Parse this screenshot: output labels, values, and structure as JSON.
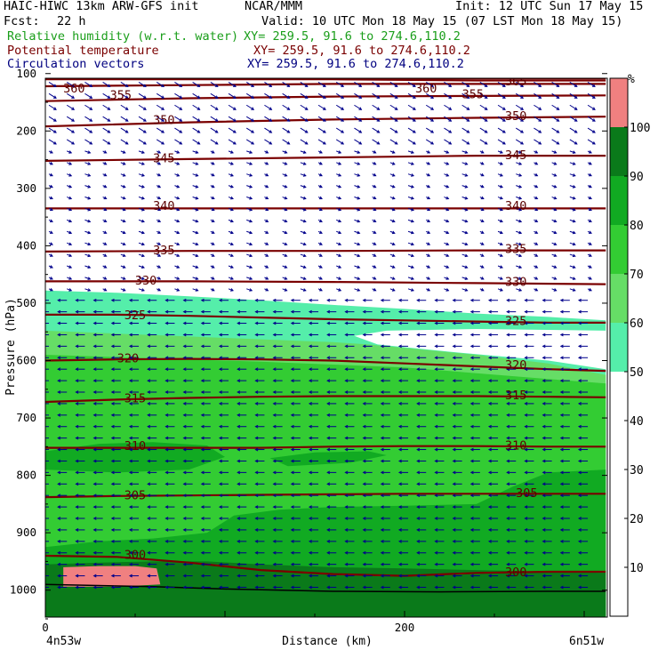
{
  "header": {
    "model": "HAIC-HIWC 13km ARW-GFS init",
    "org": "NCAR/MMM",
    "init": "Init: 12 UTC Sun 17 May 15",
    "fcst_label": "Fcst:",
    "fcst_value": "22 h",
    "valid": "Valid: 10 UTC Mon 18 May 15 (07 LST Mon 18 May 15)",
    "fields": [
      {
        "name": "Relative humidity (w.r.t. water)",
        "xy": "XY= 259.5, 91.6 to 274.6,110.2",
        "color": "#1a9e1a"
      },
      {
        "name": "Potential temperature",
        "xy": "XY= 259.5, 91.6 to 274.6,110.2",
        "color": "#7a0000"
      },
      {
        "name": "Circulation vectors",
        "xy": "XY= 259.5, 91.6 to 274.6,110.2",
        "color": "#000080"
      }
    ]
  },
  "chart_data": {
    "type": "heatmap",
    "xlabel": "Distance (km)",
    "ylabel": "Pressure (hPa)",
    "xlim": [
      0,
      312
    ],
    "ylim": [
      1050,
      70
    ],
    "x_ticks": [
      0,
      200
    ],
    "y_ticks": [
      100,
      200,
      300,
      400,
      500,
      600,
      700,
      800,
      900,
      1000
    ],
    "x_end_labels": {
      "left": "4n53w",
      "right": "6n51w"
    },
    "colorbar": {
      "unit": "%",
      "ticks": [
        10,
        20,
        30,
        40,
        50,
        60,
        70,
        80,
        90,
        100
      ],
      "bands": [
        {
          "from": 50,
          "to": 60,
          "color": "#55eeaa"
        },
        {
          "from": 60,
          "to": 70,
          "color": "#66dd66"
        },
        {
          "from": 70,
          "to": 80,
          "color": "#33cc33"
        },
        {
          "from": 80,
          "to": 90,
          "color": "#11aa22"
        },
        {
          "from": 90,
          "to": 100,
          "color": "#0a7a1a"
        },
        {
          "from": 100,
          "to": 110,
          "color": "#f08080"
        }
      ]
    },
    "rh_regions": [
      {
        "level": 50,
        "color": "#55eeaa",
        "top": [
          [
            0,
            478
          ],
          [
            40,
            482
          ],
          [
            80,
            488
          ],
          [
            120,
            495
          ],
          [
            160,
            503
          ],
          [
            200,
            510
          ],
          [
            240,
            518
          ],
          [
            280,
            524
          ],
          [
            312,
            530
          ]
        ]
      },
      {
        "level": 60,
        "color": "#66dd66",
        "top": [
          [
            0,
            548
          ],
          [
            40,
            553
          ],
          [
            80,
            558
          ],
          [
            120,
            563
          ],
          [
            160,
            568
          ],
          [
            180,
            572
          ],
          [
            200,
            578
          ],
          [
            240,
            590
          ],
          [
            280,
            605
          ],
          [
            312,
            625
          ]
        ]
      },
      {
        "level": 70,
        "color": "#33cc33",
        "top": [
          [
            0,
            590
          ],
          [
            40,
            594
          ],
          [
            80,
            598
          ],
          [
            120,
            602
          ],
          [
            160,
            607
          ],
          [
            200,
            612
          ],
          [
            240,
            622
          ],
          [
            280,
            632
          ],
          [
            312,
            640
          ]
        ]
      },
      {
        "level": 80,
        "color": "#11aa22",
        "top": [
          [
            0,
            925
          ],
          [
            30,
            915
          ],
          [
            60,
            910
          ],
          [
            90,
            900
          ],
          [
            105,
            870
          ],
          [
            130,
            860
          ],
          [
            160,
            855
          ],
          [
            200,
            853
          ],
          [
            240,
            850
          ],
          [
            260,
            820
          ],
          [
            280,
            795
          ],
          [
            312,
            790
          ]
        ]
      },
      {
        "level": 90,
        "color": "#0a7a1a",
        "top": [
          [
            0,
            955
          ],
          [
            30,
            952
          ],
          [
            60,
            950
          ],
          [
            90,
            950
          ],
          [
            120,
            955
          ],
          [
            160,
            960
          ],
          [
            200,
            962
          ],
          [
            240,
            965
          ],
          [
            280,
            968
          ],
          [
            312,
            970
          ]
        ]
      },
      {
        "level": 100,
        "color": "#7a0000",
        "top": [
          [
            0,
            70
          ],
          [
            312,
            70
          ]
        ],
        "bottom": [
          [
            0,
            110
          ],
          [
            312,
            110
          ]
        ]
      }
    ],
    "saturated_patch": {
      "color": "#f08080",
      "points": [
        [
          10,
          960
        ],
        [
          30,
          958
        ],
        [
          50,
          958
        ],
        [
          62,
          962
        ],
        [
          64,
          990
        ],
        [
          40,
          994
        ],
        [
          10,
          994
        ]
      ]
    },
    "theta_isentropes": [
      {
        "value": 300,
        "points": [
          [
            0,
            940
          ],
          [
            40,
            942
          ],
          [
            80,
            952
          ],
          [
            120,
            965
          ],
          [
            160,
            972
          ],
          [
            200,
            975
          ],
          [
            240,
            970
          ],
          [
            280,
            968
          ],
          [
            312,
            968
          ]
        ]
      },
      {
        "value": 305,
        "points": [
          [
            0,
            838
          ],
          [
            40,
            836
          ],
          [
            80,
            835
          ],
          [
            120,
            834
          ],
          [
            160,
            833
          ],
          [
            200,
            832
          ],
          [
            240,
            832
          ],
          [
            280,
            832
          ],
          [
            312,
            832
          ]
        ]
      },
      {
        "value": 310,
        "points": [
          [
            0,
            752
          ],
          [
            40,
            752
          ],
          [
            80,
            752
          ],
          [
            120,
            752
          ],
          [
            160,
            750
          ],
          [
            200,
            749
          ],
          [
            240,
            749
          ],
          [
            280,
            750
          ],
          [
            312,
            750
          ]
        ]
      },
      {
        "value": 315,
        "points": [
          [
            0,
            672
          ],
          [
            40,
            668
          ],
          [
            80,
            665
          ],
          [
            120,
            663
          ],
          [
            160,
            662
          ],
          [
            200,
            662
          ],
          [
            240,
            662
          ],
          [
            280,
            663
          ],
          [
            312,
            664
          ]
        ]
      },
      {
        "value": 320,
        "points": [
          [
            0,
            600
          ],
          [
            40,
            598
          ],
          [
            80,
            597
          ],
          [
            120,
            598
          ],
          [
            160,
            600
          ],
          [
            200,
            605
          ],
          [
            240,
            610
          ],
          [
            280,
            615
          ],
          [
            312,
            618
          ]
        ]
      },
      {
        "value": 325,
        "points": [
          [
            0,
            520
          ],
          [
            40,
            520
          ],
          [
            80,
            522
          ],
          [
            120,
            525
          ],
          [
            160,
            528
          ],
          [
            200,
            530
          ],
          [
            240,
            532
          ],
          [
            280,
            534
          ],
          [
            312,
            534
          ]
        ]
      },
      {
        "value": 330,
        "points": [
          [
            0,
            462
          ],
          [
            80,
            462
          ],
          [
            160,
            463
          ],
          [
            240,
            465
          ],
          [
            312,
            467
          ]
        ]
      },
      {
        "value": 335,
        "points": [
          [
            0,
            410
          ],
          [
            80,
            409
          ],
          [
            160,
            409
          ],
          [
            240,
            408
          ],
          [
            312,
            408
          ]
        ]
      },
      {
        "value": 340,
        "points": [
          [
            0,
            335
          ],
          [
            80,
            335
          ],
          [
            160,
            335
          ],
          [
            240,
            335
          ],
          [
            312,
            335
          ]
        ]
      },
      {
        "value": 345,
        "points": [
          [
            0,
            252
          ],
          [
            80,
            249
          ],
          [
            160,
            246
          ],
          [
            240,
            243
          ],
          [
            312,
            243
          ]
        ]
      },
      {
        "value": 350,
        "points": [
          [
            0,
            192
          ],
          [
            80,
            185
          ],
          [
            160,
            180
          ],
          [
            240,
            177
          ],
          [
            312,
            175
          ]
        ]
      },
      {
        "value": 355,
        "points": [
          [
            0,
            148
          ],
          [
            80,
            143
          ],
          [
            160,
            140
          ],
          [
            240,
            139
          ],
          [
            312,
            138
          ]
        ]
      },
      {
        "value": 360,
        "points": [
          [
            0,
            122
          ],
          [
            80,
            120
          ],
          [
            160,
            118
          ],
          [
            240,
            118
          ],
          [
            312,
            118
          ]
        ]
      },
      {
        "value": 365,
        "points": [
          [
            0,
            110
          ],
          [
            80,
            110
          ],
          [
            160,
            110
          ],
          [
            240,
            112
          ],
          [
            312,
            112
          ]
        ]
      }
    ],
    "theta_labels": [
      {
        "text": "300",
        "x": 50,
        "p": 938
      },
      {
        "text": "300",
        "x": 262,
        "p": 968
      },
      {
        "text": "305",
        "x": 50,
        "p": 834
      },
      {
        "text": "305",
        "x": 268,
        "p": 830
      },
      {
        "text": "310",
        "x": 50,
        "p": 748
      },
      {
        "text": "310",
        "x": 262,
        "p": 747
      },
      {
        "text": "315",
        "x": 50,
        "p": 665
      },
      {
        "text": "315",
        "x": 262,
        "p": 660
      },
      {
        "text": "320",
        "x": 46,
        "p": 595
      },
      {
        "text": "320",
        "x": 262,
        "p": 607
      },
      {
        "text": "325",
        "x": 50,
        "p": 520
      },
      {
        "text": "325",
        "x": 262,
        "p": 530
      },
      {
        "text": "330",
        "x": 56,
        "p": 460
      },
      {
        "text": "330",
        "x": 262,
        "p": 462
      },
      {
        "text": "335",
        "x": 66,
        "p": 407
      },
      {
        "text": "335",
        "x": 262,
        "p": 405
      },
      {
        "text": "340",
        "x": 66,
        "p": 330
      },
      {
        "text": "340",
        "x": 262,
        "p": 330
      },
      {
        "text": "345",
        "x": 66,
        "p": 247
      },
      {
        "text": "345",
        "x": 262,
        "p": 241
      },
      {
        "text": "350",
        "x": 66,
        "p": 180
      },
      {
        "text": "350",
        "x": 262,
        "p": 173
      },
      {
        "text": "355",
        "x": 42,
        "p": 137
      },
      {
        "text": "355",
        "x": 238,
        "p": 135
      },
      {
        "text": "360",
        "x": 16,
        "p": 125
      },
      {
        "text": "360",
        "x": 212,
        "p": 125
      },
      {
        "text": "365",
        "x": 262,
        "p": 113
      }
    ],
    "circulation_vectors": {
      "u_lower": -1,
      "u_upper": 1,
      "w_upper": -0.6,
      "color": "#00008b"
    }
  }
}
